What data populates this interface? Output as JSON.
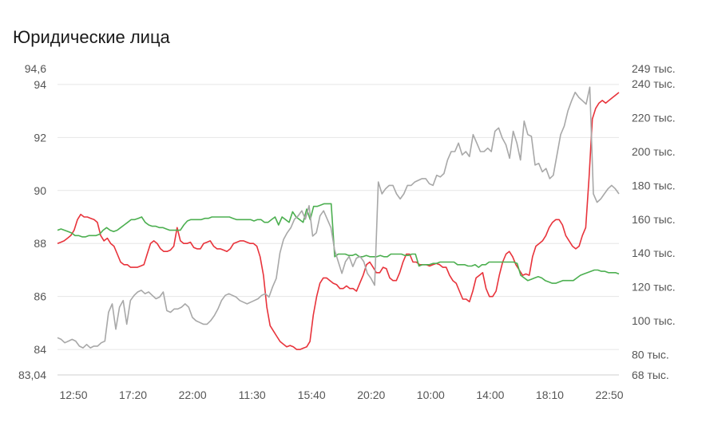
{
  "title": "Юридические лица",
  "chart_data": {
    "type": "line",
    "title": "Юридические лица",
    "x_ticks": [
      "12:50",
      "17:20",
      "22:00",
      "11:30",
      "15:40",
      "20:20",
      "10:00",
      "14:00",
      "18:10",
      "22:50"
    ],
    "left_axis": {
      "ylim": [
        83.04,
        94.6
      ],
      "ticks": [
        {
          "value": 94.6,
          "label": "94,6"
        },
        {
          "value": 94,
          "label": "94"
        },
        {
          "value": 92,
          "label": "92"
        },
        {
          "value": 90,
          "label": "90"
        },
        {
          "value": 88,
          "label": "88"
        },
        {
          "value": 86,
          "label": "86"
        },
        {
          "value": 84,
          "label": "84"
        },
        {
          "value": 83.04,
          "label": "83,04"
        }
      ]
    },
    "right_axis": {
      "ylim": [
        68000,
        249000
      ],
      "ticks": [
        {
          "value": 249000,
          "label": "249 тыс."
        },
        {
          "value": 240000,
          "label": "240 тыс."
        },
        {
          "value": 220000,
          "label": "220 тыс."
        },
        {
          "value": 200000,
          "label": "200 тыс."
        },
        {
          "value": 180000,
          "label": "180 тыс."
        },
        {
          "value": 160000,
          "label": "160 тыс."
        },
        {
          "value": 140000,
          "label": "140 тыс."
        },
        {
          "value": 120000,
          "label": "120 тыс."
        },
        {
          "value": 100000,
          "label": "100 тыс."
        },
        {
          "value": 80000,
          "label": "80 тыс."
        },
        {
          "value": 68000,
          "label": "68 тыс."
        }
      ]
    },
    "grid": true,
    "series": [
      {
        "axis": "left",
        "color": "#e8333b",
        "values": [
          88.0,
          88.05,
          88.1,
          88.2,
          88.3,
          88.5,
          88.9,
          89.1,
          89.0,
          89.0,
          88.95,
          88.9,
          88.8,
          88.3,
          88.1,
          88.2,
          88.0,
          87.9,
          87.6,
          87.3,
          87.2,
          87.2,
          87.1,
          87.1,
          87.1,
          87.15,
          87.2,
          87.6,
          88.0,
          88.1,
          88.0,
          87.8,
          87.7,
          87.7,
          87.75,
          87.9,
          88.6,
          88.1,
          88.0,
          88.0,
          88.05,
          87.85,
          87.8,
          87.8,
          88.0,
          88.05,
          88.1,
          87.9,
          87.8,
          87.8,
          87.75,
          87.7,
          87.8,
          88.0,
          88.05,
          88.1,
          88.1,
          88.05,
          88.0,
          88.0,
          87.9,
          87.5,
          86.8,
          85.6,
          84.9,
          84.7,
          84.5,
          84.3,
          84.2,
          84.1,
          84.15,
          84.1,
          84.0,
          84.0,
          84.05,
          84.1,
          84.3,
          85.3,
          86.0,
          86.5,
          86.7,
          86.7,
          86.6,
          86.5,
          86.45,
          86.3,
          86.3,
          86.4,
          86.3,
          86.3,
          86.2,
          86.5,
          86.8,
          87.2,
          87.3,
          87.1,
          86.9,
          86.9,
          87.1,
          87.05,
          86.7,
          86.6,
          86.6,
          86.9,
          87.3,
          87.6,
          87.6,
          87.3,
          87.3,
          87.2,
          87.2,
          87.2,
          87.15,
          87.2,
          87.25,
          87.2,
          87.1,
          87.1,
          86.8,
          86.6,
          86.5,
          86.2,
          85.9,
          85.9,
          85.8,
          86.2,
          86.7,
          86.8,
          86.9,
          86.3,
          86.0,
          86.0,
          86.2,
          86.8,
          87.3,
          87.6,
          87.7,
          87.5,
          87.2,
          87.0,
          86.8,
          86.85,
          86.8,
          87.5,
          87.9,
          88.0,
          88.1,
          88.3,
          88.6,
          88.8,
          88.9,
          88.9,
          88.7,
          88.3,
          88.1,
          87.9,
          87.8,
          87.9,
          88.3,
          88.6,
          90.5,
          92.7,
          93.1,
          93.3,
          93.4,
          93.3,
          93.4,
          93.5,
          93.6,
          93.7
        ]
      },
      {
        "axis": "left",
        "color": "#4caf50",
        "values": [
          88.5,
          88.55,
          88.5,
          88.45,
          88.4,
          88.3,
          88.3,
          88.25,
          88.25,
          88.3,
          88.3,
          88.3,
          88.35,
          88.5,
          88.6,
          88.5,
          88.45,
          88.5,
          88.6,
          88.7,
          88.8,
          88.9,
          88.9,
          88.95,
          89.0,
          88.8,
          88.7,
          88.65,
          88.65,
          88.6,
          88.6,
          88.55,
          88.5,
          88.5,
          88.5,
          88.5,
          88.7,
          88.85,
          88.9,
          88.9,
          88.9,
          88.9,
          88.95,
          88.95,
          89.0,
          89.0,
          89.0,
          89.0,
          89.0,
          89.0,
          88.95,
          88.9,
          88.9,
          88.9,
          88.9,
          88.9,
          88.85,
          88.9,
          88.9,
          88.8,
          88.8,
          88.9,
          89.0,
          88.7,
          89.0,
          88.9,
          88.8,
          89.2,
          89.0,
          88.9,
          88.8,
          89.3,
          88.9,
          89.4,
          89.4,
          89.45,
          89.5,
          89.5,
          89.5,
          87.5,
          87.6,
          87.6,
          87.6,
          87.55,
          87.55,
          87.6,
          87.5,
          87.5,
          87.55,
          87.5,
          87.5,
          87.5,
          87.55,
          87.5,
          87.5,
          87.6,
          87.6,
          87.6,
          87.6,
          87.55,
          87.55,
          87.6,
          87.6,
          87.15,
          87.2,
          87.2,
          87.2,
          87.25,
          87.25,
          87.3,
          87.3,
          87.3,
          87.3,
          87.3,
          87.2,
          87.2,
          87.2,
          87.15,
          87.15,
          87.2,
          87.1,
          87.2,
          87.2,
          87.3,
          87.3,
          87.3,
          87.3,
          87.3,
          87.3,
          87.3,
          87.3,
          87.25,
          86.8,
          86.7,
          86.6,
          86.65,
          86.7,
          86.75,
          86.7,
          86.6,
          86.55,
          86.5,
          86.5,
          86.55,
          86.6,
          86.6,
          86.6,
          86.6,
          86.7,
          86.8,
          86.85,
          86.9,
          86.95,
          87.0,
          87.0,
          86.95,
          86.95,
          86.9,
          86.9,
          86.9,
          86.85
        ]
      },
      {
        "axis": "right",
        "color": "#a8a8a8",
        "values": [
          90000,
          89000,
          87000,
          88000,
          89000,
          88000,
          85000,
          84000,
          86000,
          84000,
          85000,
          85000,
          87000,
          88000,
          105000,
          110000,
          95000,
          108000,
          112000,
          98000,
          112000,
          115000,
          117000,
          118000,
          116000,
          117000,
          115000,
          113000,
          114000,
          117000,
          106000,
          105000,
          107000,
          107000,
          108000,
          110000,
          108000,
          102000,
          100000,
          99000,
          98000,
          98000,
          100000,
          103000,
          107000,
          112000,
          115000,
          116000,
          115000,
          114000,
          112000,
          111000,
          110000,
          111000,
          112000,
          113000,
          115000,
          116000,
          114000,
          120000,
          125000,
          140000,
          148000,
          152000,
          155000,
          160000,
          162000,
          165000,
          160000,
          168000,
          150000,
          152000,
          162000,
          165000,
          160000,
          155000,
          142000,
          135000,
          128000,
          135000,
          138000,
          132000,
          137000,
          138000,
          135000,
          128000,
          125000,
          121000,
          182000,
          175000,
          178000,
          180000,
          180000,
          175000,
          172000,
          175000,
          180000,
          180000,
          182000,
          183000,
          184000,
          184000,
          181000,
          180000,
          186000,
          185000,
          187000,
          195000,
          200000,
          200000,
          205000,
          198000,
          200000,
          197000,
          210000,
          205000,
          200000,
          200000,
          202000,
          200000,
          212000,
          214000,
          208000,
          204000,
          196000,
          212000,
          205000,
          195000,
          218000,
          210000,
          209000,
          192000,
          193000,
          188000,
          190000,
          184000,
          186000,
          198000,
          210000,
          215000,
          224000,
          230000,
          235000,
          232000,
          230000,
          228000,
          238000,
          175000,
          170000,
          172000,
          175000,
          178000,
          180000,
          178000,
          175000
        ]
      }
    ]
  }
}
